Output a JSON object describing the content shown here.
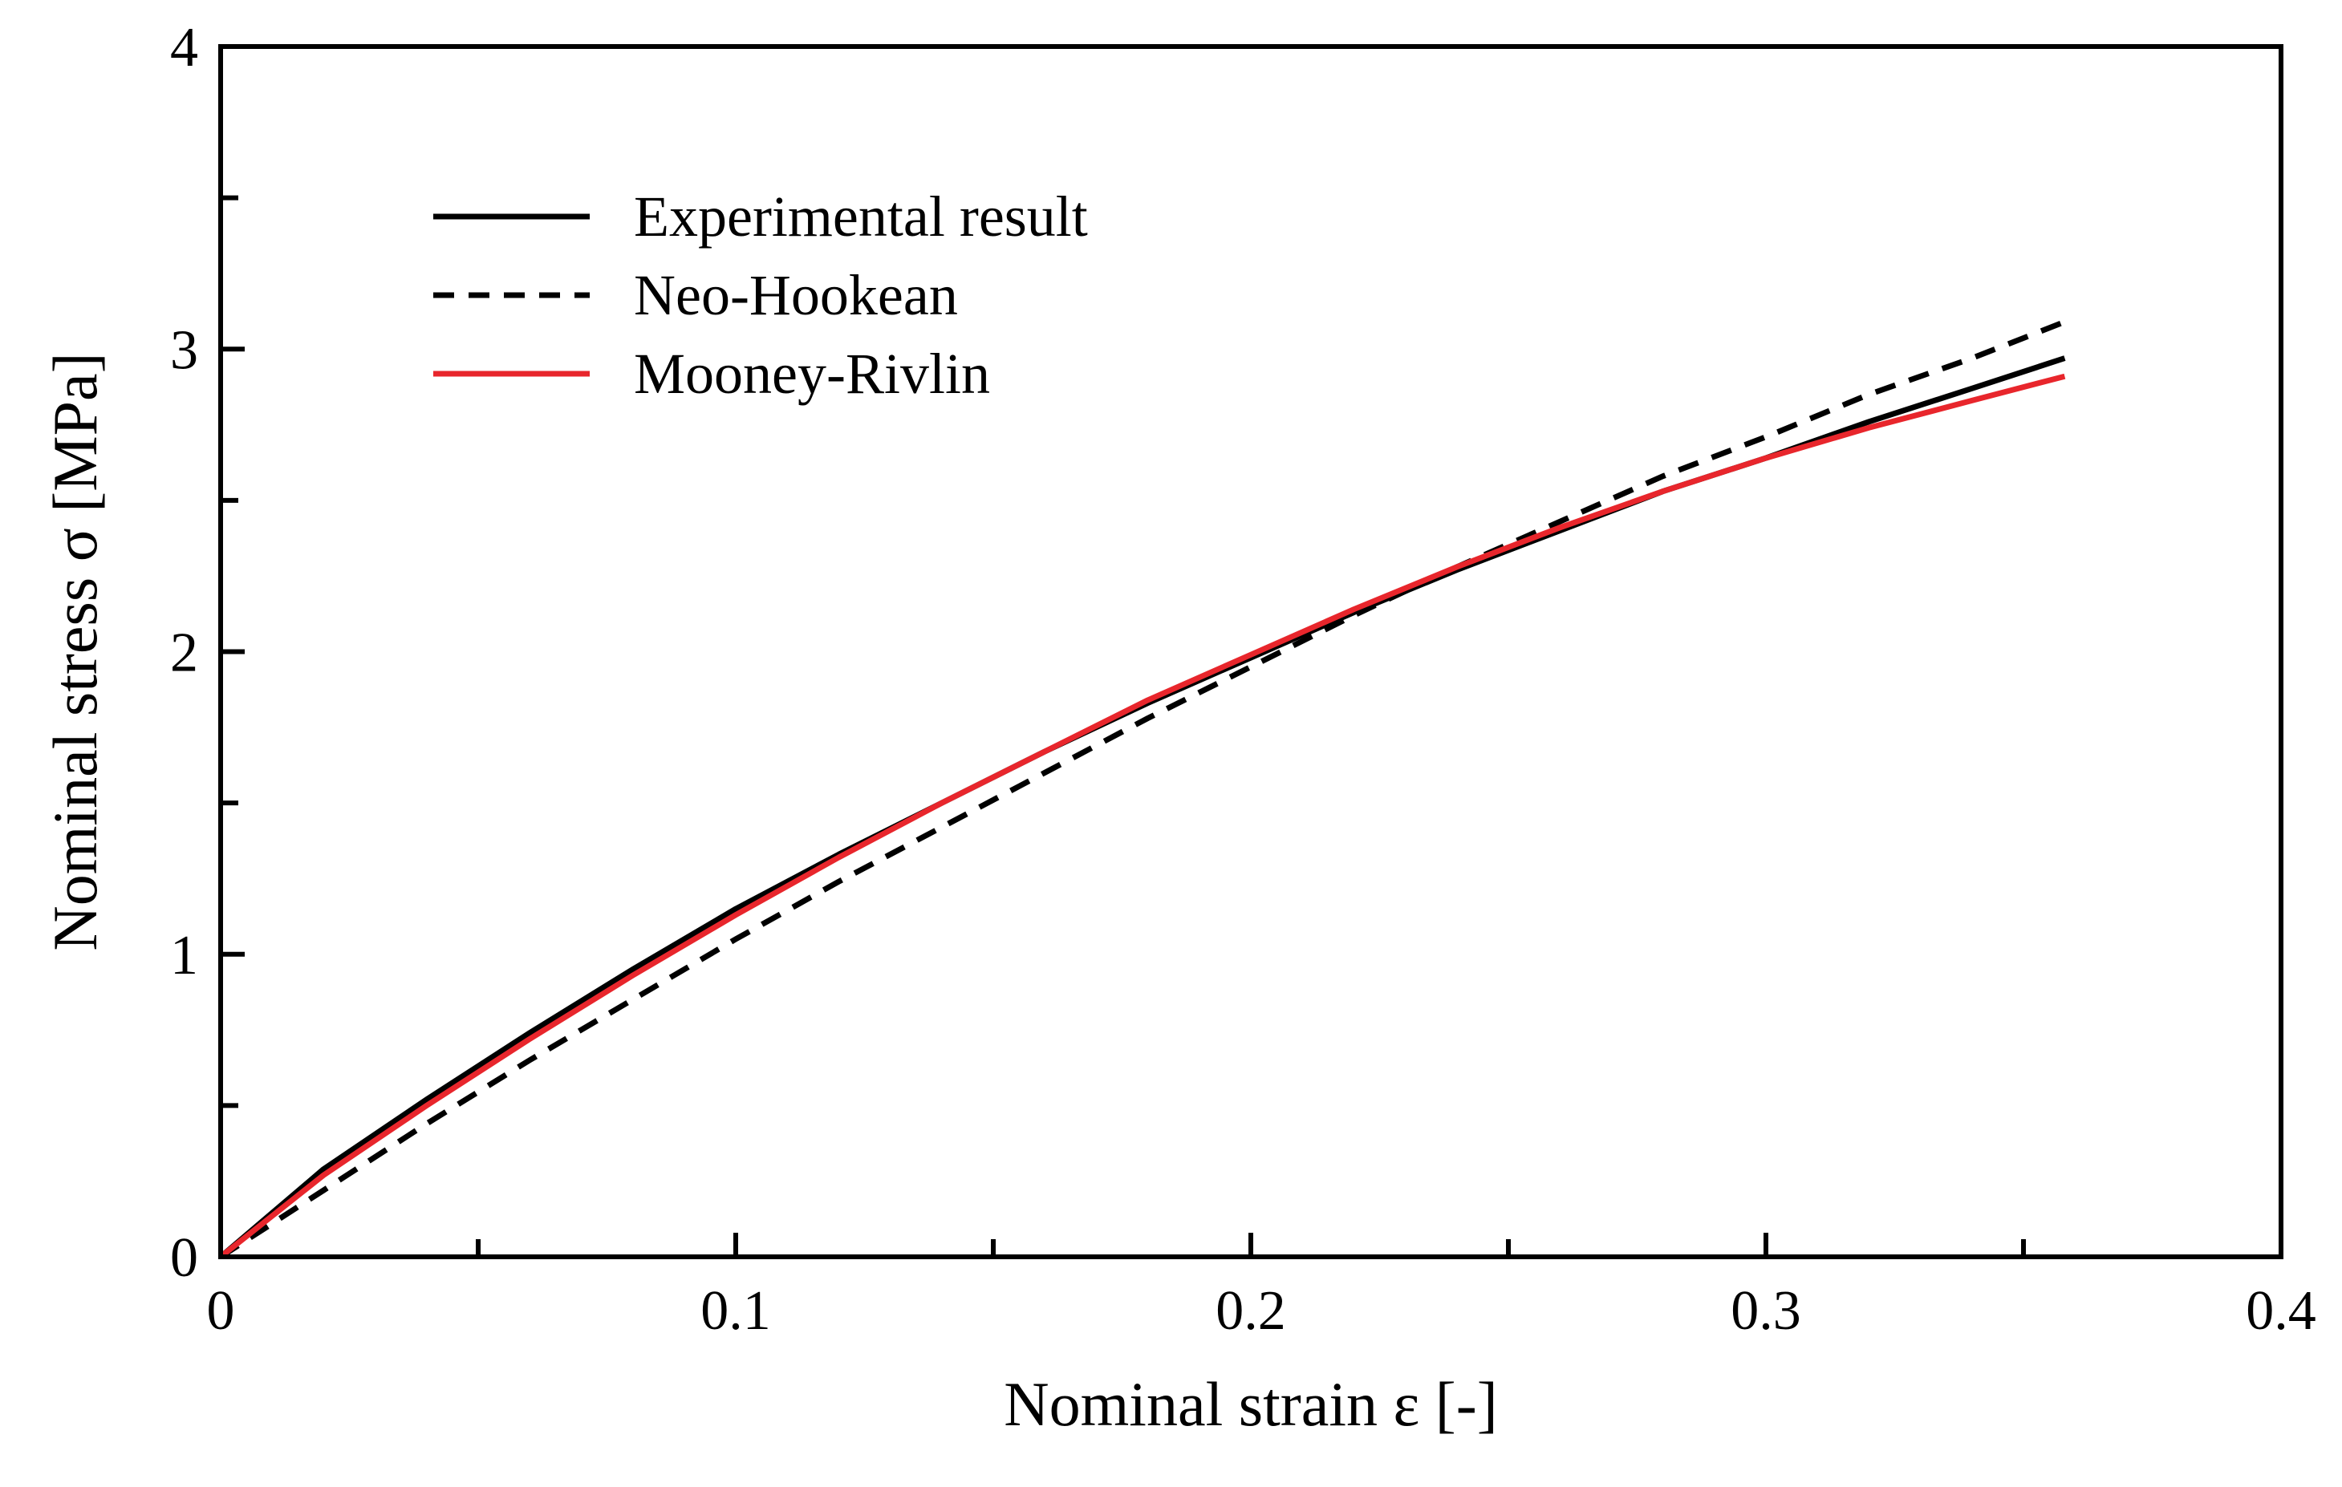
{
  "chart_data": {
    "type": "line",
    "xlabel": "Nominal strain ε [-]",
    "ylabel": "Nominal stress σ [MPa]",
    "xlim": [
      0,
      0.4
    ],
    "ylim": [
      0,
      4
    ],
    "x_ticks": [
      0,
      0.1,
      0.2,
      0.3,
      0.4
    ],
    "x_tick_labels": [
      "0",
      "0.1",
      "0.2",
      "0.3",
      "0.4"
    ],
    "x_minor_ticks": [
      0.05,
      0.15,
      0.25,
      0.35
    ],
    "y_ticks": [
      0,
      1,
      2,
      3,
      4
    ],
    "y_tick_labels": [
      "0",
      "1",
      "2",
      "3",
      "4"
    ],
    "y_minor_ticks": [
      0.5,
      1.5,
      2.5,
      3.5
    ],
    "grid": false,
    "legend": "upper-left",
    "series": [
      {
        "name": "Experimental result",
        "color": "#000000",
        "style": "solid",
        "x": [
          0,
          0.02,
          0.04,
          0.06,
          0.08,
          0.1,
          0.12,
          0.14,
          0.16,
          0.18,
          0.2,
          0.22,
          0.24,
          0.26,
          0.28,
          0.3,
          0.32,
          0.34,
          0.358
        ],
        "y": [
          0,
          0.29,
          0.52,
          0.74,
          0.95,
          1.15,
          1.33,
          1.5,
          1.67,
          1.83,
          1.98,
          2.13,
          2.27,
          2.4,
          2.53,
          2.64,
          2.76,
          2.87,
          2.97
        ]
      },
      {
        "name": "Neo-Hookean",
        "color": "#000000",
        "style": "dashed",
        "x": [
          0,
          0.02,
          0.04,
          0.06,
          0.08,
          0.1,
          0.12,
          0.14,
          0.16,
          0.18,
          0.2,
          0.22,
          0.24,
          0.26,
          0.28,
          0.3,
          0.32,
          0.34,
          0.358
        ],
        "y": [
          0,
          0.22,
          0.44,
          0.65,
          0.85,
          1.05,
          1.24,
          1.42,
          1.6,
          1.78,
          1.95,
          2.12,
          2.28,
          2.43,
          2.58,
          2.71,
          2.85,
          2.97,
          3.09
        ]
      },
      {
        "name": "Mooney-Rivlin",
        "color": "#e8262c",
        "style": "solid",
        "x": [
          0,
          0.02,
          0.04,
          0.06,
          0.08,
          0.1,
          0.12,
          0.14,
          0.16,
          0.18,
          0.2,
          0.22,
          0.24,
          0.26,
          0.28,
          0.3,
          0.32,
          0.34,
          0.358
        ],
        "y": [
          0,
          0.27,
          0.5,
          0.72,
          0.93,
          1.13,
          1.32,
          1.5,
          1.67,
          1.84,
          1.99,
          2.14,
          2.28,
          2.41,
          2.53,
          2.64,
          2.74,
          2.83,
          2.91
        ]
      }
    ]
  }
}
